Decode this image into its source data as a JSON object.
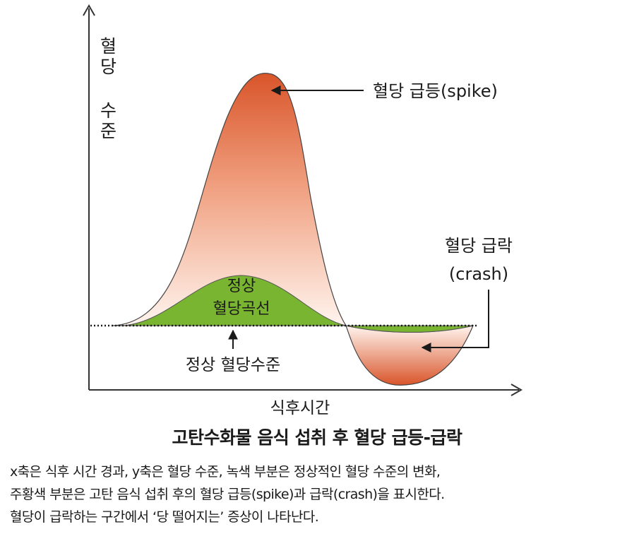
{
  "diagram": {
    "y_axis_label": "혈당 수준",
    "x_axis_label": "식후시간",
    "spike_label": "혈당 급등(spike)",
    "crash_label_line1": "혈당 급락",
    "crash_label_line2": "(crash)",
    "normal_curve_line1": "정상",
    "normal_curve_line2": "혈당곡선",
    "normal_level_label": "정상 혈당수준",
    "colors": {
      "spike_top": "#d9552a",
      "spike_bottom": "#fff4ee",
      "normal_green": "#7ab531",
      "axis": "#333333"
    }
  },
  "caption": {
    "title": "고탄수화물 음식 섭취 후 혈당 급등-급락",
    "line1": "x축은 식후 시간 경과, y축은 혈당 수준, 녹색 부분은 정상적인 혈당 수준의 변화,",
    "line2": "주황색 부분은 고탄 음식 섭취 후의 혈당 급등(spike)과 급락(crash)을 표시한다.",
    "line3": "혈당이 급락하는 구간에서 ‘당 떨어지는’ 증상이 나타난다."
  }
}
